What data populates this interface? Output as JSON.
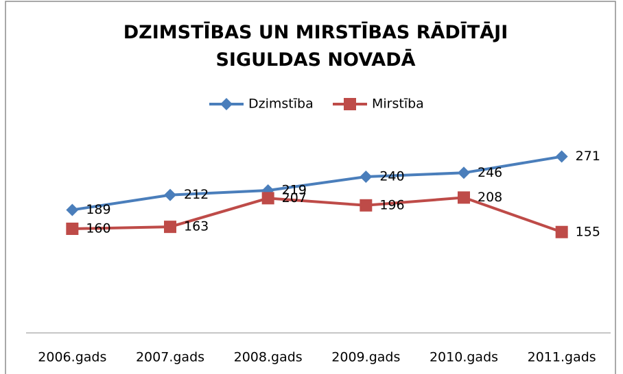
{
  "chart_data": {
    "type": "line",
    "title": "DZIMSTĪBAS UN MIRSTĪBAS RĀDĪTĀJI SIGULDAS NOVADĀ",
    "categories": [
      "2006.gads",
      "2007.gads",
      "2008.gads",
      "2009.gads",
      "2010.gads",
      "2011.gads"
    ],
    "series": [
      {
        "name": "Dzimstība",
        "color": "#4a7ebb",
        "marker": "diamond",
        "values": [
          189,
          212,
          219,
          240,
          246,
          271
        ]
      },
      {
        "name": "Mirstība",
        "color": "#be4b48",
        "marker": "square",
        "values": [
          160,
          163,
          207,
          196,
          208,
          155
        ]
      }
    ],
    "ylim": [
      0,
      300
    ],
    "legend": "top"
  }
}
